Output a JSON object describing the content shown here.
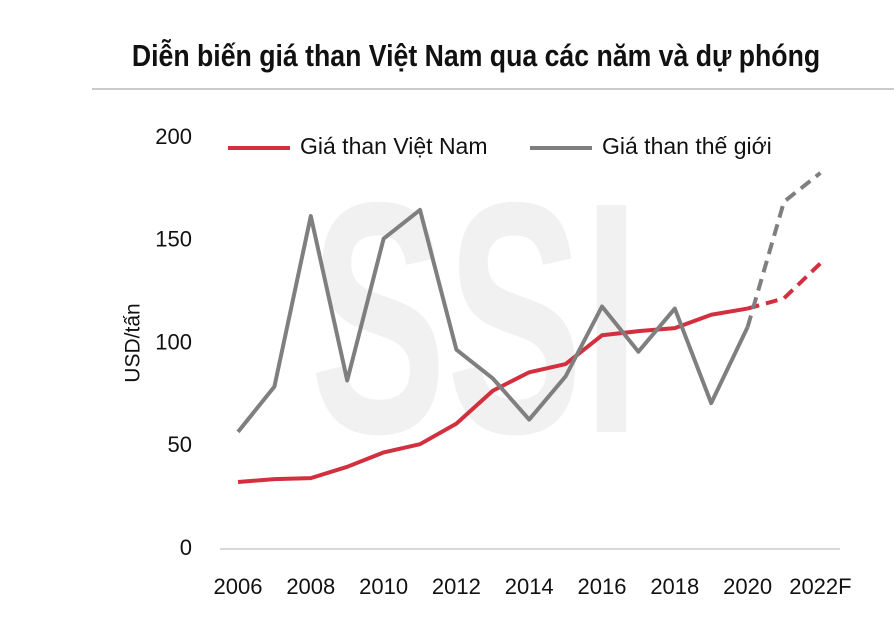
{
  "chart_data": {
    "type": "line",
    "title": "Diễn biến giá than Việt Nam qua các năm và dự phóng",
    "y_label": "USD/tấn",
    "watermark": "SSI",
    "categories": [
      "2006",
      null,
      "2008",
      null,
      "2010",
      null,
      "2012",
      null,
      "2014",
      null,
      "2016",
      null,
      "2018",
      null,
      "2020",
      null,
      "2022F"
    ],
    "forecast_from": "2020",
    "series": [
      {
        "name": "Giá than Việt Nam",
        "color": "#d2303f",
        "values": [
          32.6,
          34,
          34.5,
          40,
          47,
          51,
          61,
          77,
          86,
          90,
          104,
          106,
          107.5,
          114,
          117,
          122,
          139
        ]
      },
      {
        "name": "Giá than thế giới",
        "color": "#7f7f7f",
        "values": [
          57,
          79,
          162,
          82,
          151,
          165,
          97,
          83,
          63,
          84,
          118,
          96,
          117,
          71,
          108,
          169,
          183
        ]
      }
    ],
    "ylim": [
      0,
      200
    ],
    "yticks": [
      0,
      50,
      100,
      150,
      200
    ],
    "grid": false
  }
}
